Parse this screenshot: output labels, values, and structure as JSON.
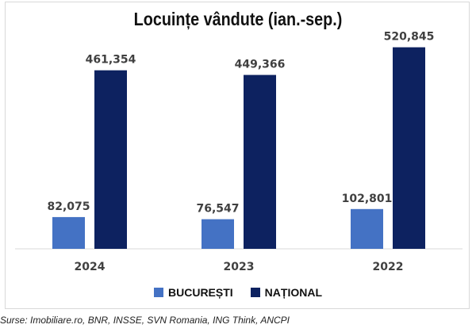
{
  "chart_data": {
    "type": "bar",
    "title": "Locuințe vândute (ian.-sep.)",
    "categories": [
      "2024",
      "2023",
      "2022"
    ],
    "series": [
      {
        "name": "BUCUREȘTI",
        "color": "#4472c4",
        "values": [
          82075,
          76547,
          102801
        ],
        "labels": [
          "82,075",
          "76,547",
          "102,801"
        ]
      },
      {
        "name": "NAȚIONAL",
        "color": "#0d2260",
        "values": [
          461354,
          449366,
          520845
        ],
        "labels": [
          "461,354",
          "449,366",
          "520,845"
        ]
      }
    ],
    "xlabel": "",
    "ylabel": "",
    "ylim": [
      0,
      600000
    ],
    "grid": false,
    "legend_position": "bottom"
  },
  "source": "Surse: Imobiliare.ro, BNR, INSSE, SVN Romania, ING Think, ANCPI"
}
